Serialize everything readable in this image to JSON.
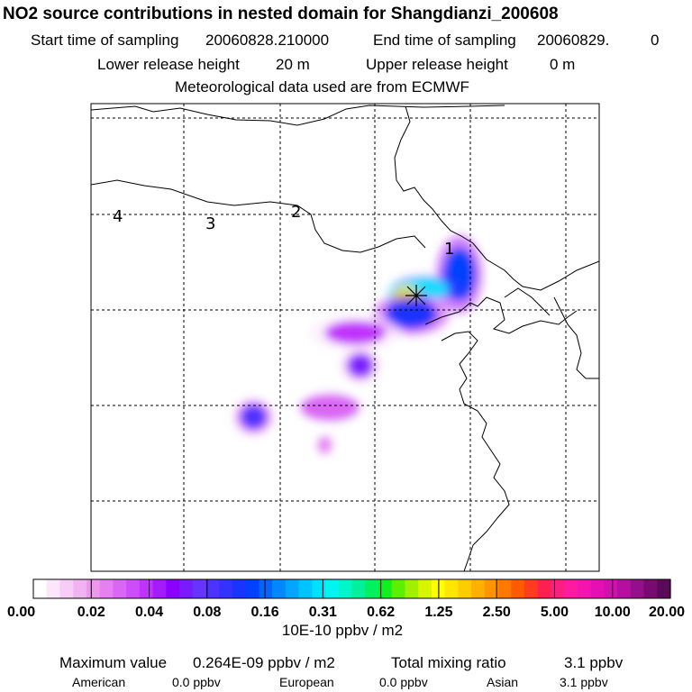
{
  "chart_data": {
    "type": "heatmap",
    "title": "NO2 source contributions in nested domain for Shangdianzi_200608",
    "start_label": "Start time of sampling",
    "start_value": "20060828.210000",
    "end_label": "End time of sampling",
    "end_value": "20060829.",
    "end_suffix": "0",
    "lower_label": "Lower release height",
    "lower_value": "20 m",
    "upper_label": "Upper release height",
    "upper_value": "0 m",
    "met_line": "Meteorological data used are from ECMWF",
    "region_labels": [
      "1",
      "2",
      "3",
      "4"
    ],
    "colorbar": {
      "ticks": [
        "0.00",
        "0.02",
        "0.04",
        "0.08",
        "0.16",
        "0.31",
        "0.62",
        "1.25",
        "2.50",
        "5.00",
        "10.00",
        "20.00"
      ],
      "colors": [
        "#ffffff",
        "#fce6fc",
        "#f7cdf7",
        "#f2b3f2",
        "#ec99ec",
        "#e680f0",
        "#d966f5",
        "#cc4df9",
        "#bf33fc",
        "#a61aff",
        "#8c00ff",
        "#7a1aff",
        "#6633ff",
        "#4d33ff",
        "#3333ff",
        "#1a33ff",
        "#0040ff",
        "#0066ff",
        "#0088ff",
        "#00a6ff",
        "#00c4ff",
        "#00e0ff",
        "#00f5f0",
        "#00f5c8",
        "#00f09c",
        "#00f060",
        "#10f020",
        "#5af000",
        "#a0f000",
        "#d8f500",
        "#ffff00",
        "#ffe600",
        "#ffcc00",
        "#ffb000",
        "#ff9400",
        "#ff7800",
        "#ff5a00",
        "#ff3c1e",
        "#ff2050",
        "#ff1e80",
        "#ff1aa0",
        "#f514b0",
        "#e60fb4",
        "#d20fb0",
        "#b40f9e",
        "#960f8a",
        "#780a72",
        "#5a0a58"
      ],
      "unit": "10E-10 ppbv / m2"
    },
    "max_label": "Maximum value",
    "max_value": "0.264E-09 ppbv / m2",
    "total_label": "Total mixing ratio",
    "total_value": "3.1 ppbv",
    "regional": [
      {
        "name": "American",
        "value": "0.0 ppbv"
      },
      {
        "name": "European",
        "value": "0.0 ppbv"
      },
      {
        "name": "Asian",
        "value": "3.1 ppbv"
      }
    ],
    "plumes": [
      {
        "cx": 0.725,
        "cy": 0.365,
        "rx": 0.03,
        "ry": 0.055,
        "value": 0.14
      },
      {
        "cx": 0.66,
        "cy": 0.395,
        "rx": 0.045,
        "ry": 0.018,
        "value": 0.3
      },
      {
        "cx": 0.62,
        "cy": 0.41,
        "rx": 0.025,
        "ry": 0.02,
        "value": 1.0
      },
      {
        "cx": 0.63,
        "cy": 0.45,
        "rx": 0.05,
        "ry": 0.03,
        "value": 0.12
      },
      {
        "cx": 0.52,
        "cy": 0.49,
        "rx": 0.06,
        "ry": 0.025,
        "value": 0.04
      },
      {
        "cx": 0.53,
        "cy": 0.56,
        "rx": 0.025,
        "ry": 0.025,
        "value": 0.06
      },
      {
        "cx": 0.32,
        "cy": 0.67,
        "rx": 0.025,
        "ry": 0.025,
        "value": 0.09
      },
      {
        "cx": 0.47,
        "cy": 0.65,
        "rx": 0.06,
        "ry": 0.03,
        "value": 0.03
      },
      {
        "cx": 0.46,
        "cy": 0.73,
        "rx": 0.015,
        "ry": 0.02,
        "value": 0.025
      }
    ]
  }
}
